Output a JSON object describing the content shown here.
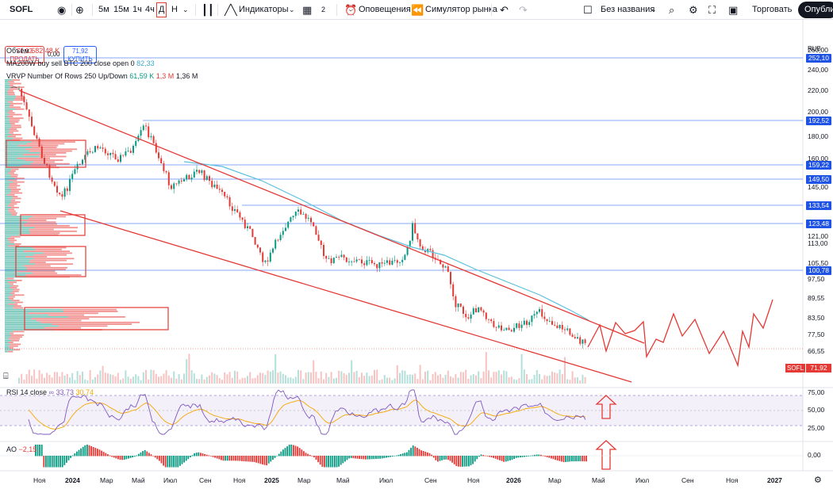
{
  "toolbar": {
    "symbol": "SOFL",
    "timeframes": [
      "5м",
      "15м",
      "1ч",
      "4ч",
      "Д",
      "Н"
    ],
    "active_timeframe": "Д",
    "indicators_label": "Индикаторы",
    "layouts_count": "2",
    "alerts_label": "Оповещения",
    "replay_label": "Симулятор рынка",
    "layout_name": "Без названия",
    "trade_label": "Торговать",
    "publish_label": "Опублик"
  },
  "order_panel": {
    "sell_price": "71,92",
    "sell_label": "ПРОДАТЬ",
    "spread": "0,00",
    "buy_price": "71,92",
    "buy_label": "КУПИТЬ"
  },
  "legends": {
    "volume_label": "Объём",
    "volume_value": "682,48 K",
    "ma_label": "MA200W buy sell BTC 200 close open 0",
    "ma_value": "82,33",
    "vrvp_label": "VRVP Number Of Rows 250 Up/Down",
    "vrvp_up": "61,59 K",
    "vrvp_down": "1,3 M",
    "vrvp_total": "1,36 M",
    "rsi_label": "RSI 14 close",
    "rsi_value": "33,73",
    "rsi_ma_value": "30,74",
    "ao_label": "AO",
    "ao_value": "−2,15"
  },
  "price_axis": {
    "currency": "RUB",
    "ticks": [
      "260,00",
      "240,00",
      "220,00",
      "200,00",
      "180,00",
      "160,00",
      "145,00",
      "133,54",
      "121,00",
      "113,00",
      "105,50",
      "97,50",
      "89,55",
      "83,50",
      "77,50",
      "66,55"
    ],
    "level_labels": [
      "252,10",
      "192,52",
      "159,22",
      "149,50",
      "133,54",
      "123,48",
      "100,78"
    ],
    "current_symbol": "SOFL",
    "current_price": "71,92",
    "rsi_ticks": [
      "75,00",
      "50,00",
      "25,00"
    ],
    "ao_ticks": [
      "0,00"
    ]
  },
  "time_axis": {
    "labels": [
      "Ноя",
      "2024",
      "Мар",
      "Май",
      "Июл",
      "Сен",
      "Ноя",
      "2025",
      "Мар",
      "Май",
      "Июл",
      "Сен",
      "Ноя",
      "2026",
      "Мар",
      "Май",
      "Июл",
      "Сен",
      "Ноя",
      "2027"
    ]
  },
  "colors": {
    "accent": "#2962ff",
    "down": "#e53935",
    "up": "#089981",
    "drawing": "#e53935",
    "ma_line": "#5bc0de",
    "rsi_line": "#7e57c2",
    "rsi_ma": "#f7a600"
  }
}
